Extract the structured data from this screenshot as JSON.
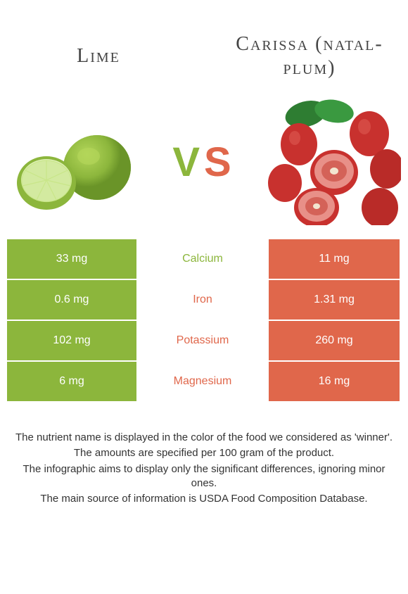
{
  "left_food": {
    "title": "Lime",
    "color": "#8cb63c"
  },
  "right_food": {
    "title": "Carissa (natal-plum)",
    "color": "#e0674b"
  },
  "vs": {
    "v": "V",
    "s": "S"
  },
  "colors": {
    "lime_green": "#8cb63c",
    "lime_dark": "#6a9428",
    "lime_light": "#b3d65a",
    "carissa_red": "#c8312e",
    "carissa_dark": "#9b2220",
    "carissa_light": "#dd5a52",
    "leaf_green": "#2e7d32",
    "orange_cell": "#e0674b",
    "white": "#ffffff"
  },
  "nutrients": [
    {
      "name": "Calcium",
      "left": "33 mg",
      "right": "11 mg",
      "winner": "left"
    },
    {
      "name": "Iron",
      "left": "0.6 mg",
      "right": "1.31 mg",
      "winner": "right"
    },
    {
      "name": "Potassium",
      "left": "102 mg",
      "right": "260 mg",
      "winner": "right"
    },
    {
      "name": "Magnesium",
      "left": "6 mg",
      "right": "16 mg",
      "winner": "right"
    }
  ],
  "notes": [
    "The nutrient name is displayed in the color of the food we considered as 'winner'.",
    "The amounts are specified per 100 gram of the product.",
    "The infographic aims to display only the significant differences, ignoring minor ones.",
    "The main source of information is USDA Food Composition Database."
  ]
}
